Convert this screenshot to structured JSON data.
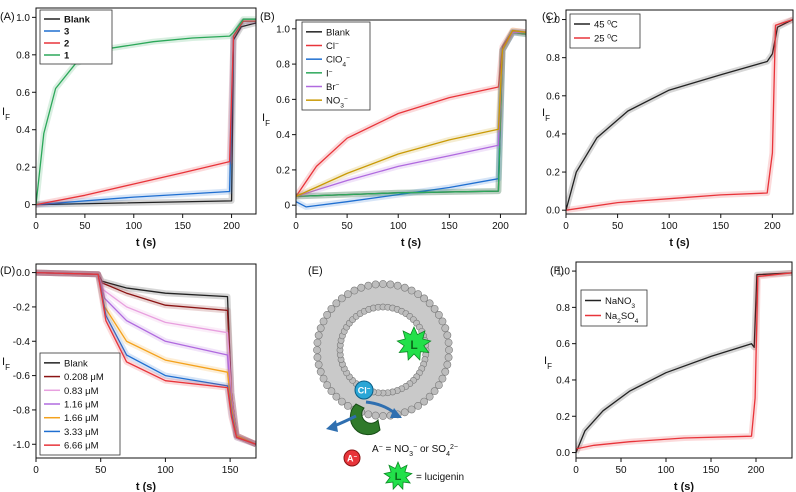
{
  "figure": {
    "colors": {
      "blank": "#222222",
      "red": "#e8343a",
      "blue": "#1f6fd1",
      "green": "#2ca85a",
      "violet": "#b06adf",
      "gold": "#c99a06",
      "pink": "#e8a0df",
      "orange": "#f4a21d",
      "darkred": "#8b1414",
      "black": "#222222"
    }
  },
  "chart_data": [
    {
      "id": "A",
      "type": "line",
      "panel_label": "(A)",
      "xlabel": "t (s)",
      "ylabel": "I",
      "ylabel_sub": "F",
      "xlim": [
        0,
        225
      ],
      "ylim": [
        -0.05,
        1.05
      ],
      "xticks": [
        0,
        50,
        100,
        150,
        200
      ],
      "yticks": [
        0,
        0.2,
        0.4,
        0.6,
        0.8,
        1.0
      ],
      "ytick_labels": [
        "0",
        "0.2",
        "0.4",
        "0.6",
        "0.8",
        "1.0"
      ],
      "legend": {
        "position": "top-left",
        "bold_labels": true
      },
      "series": [
        {
          "name": "Blank",
          "color": "#222222",
          "points": [
            [
              0,
              0
            ],
            [
              200,
              0.02
            ],
            [
              202,
              0.88
            ],
            [
              210,
              0.95
            ],
            [
              225,
              0.97
            ]
          ]
        },
        {
          "name": "3",
          "color": "#1f6fd1",
          "points": [
            [
              0,
              0
            ],
            [
              100,
              0.04
            ],
            [
              198,
              0.07
            ],
            [
              202,
              0.9
            ],
            [
              212,
              0.98
            ],
            [
              225,
              0.98
            ]
          ]
        },
        {
          "name": "2",
          "color": "#e8343a",
          "points": [
            [
              0,
              0
            ],
            [
              50,
              0.05
            ],
            [
              100,
              0.11
            ],
            [
              150,
              0.17
            ],
            [
              198,
              0.23
            ],
            [
              202,
              0.9
            ],
            [
              212,
              0.98
            ],
            [
              225,
              0.98
            ]
          ]
        },
        {
          "name": "1",
          "color": "#2ca85a",
          "points": [
            [
              0,
              0
            ],
            [
              8,
              0.38
            ],
            [
              20,
              0.62
            ],
            [
              40,
              0.75
            ],
            [
              70,
              0.83
            ],
            [
              120,
              0.87
            ],
            [
              160,
              0.89
            ],
            [
              198,
              0.9
            ],
            [
              202,
              0.92
            ],
            [
              212,
              0.99
            ],
            [
              225,
              0.99
            ]
          ]
        }
      ]
    },
    {
      "id": "B",
      "type": "line",
      "panel_label": "(B)",
      "xlabel": "t (s)",
      "ylabel": "I",
      "ylabel_sub": "F",
      "xlim": [
        0,
        225
      ],
      "ylim": [
        -0.05,
        1.05
      ],
      "xticks": [
        0,
        50,
        100,
        150,
        200
      ],
      "yticks": [
        0,
        0.2,
        0.4,
        0.6,
        0.8,
        1.0
      ],
      "ytick_labels": [
        "0",
        "0.2",
        "0.4",
        "0.6",
        "0.8",
        "1.0"
      ],
      "legend": {
        "position": "top-left",
        "bold_labels": false
      },
      "series": [
        {
          "name": "Blank",
          "color": "#222222",
          "points": [
            [
              0,
              0.05
            ],
            [
              100,
              0.07
            ],
            [
              198,
              0.08
            ],
            [
              202,
              0.88
            ],
            [
              212,
              0.98
            ],
            [
              225,
              0.97
            ]
          ]
        },
        {
          "name": "Cl",
          "sup": "−",
          "color": "#e8343a",
          "points": [
            [
              0,
              0.05
            ],
            [
              20,
              0.22
            ],
            [
              50,
              0.38
            ],
            [
              100,
              0.52
            ],
            [
              150,
              0.61
            ],
            [
              198,
              0.67
            ],
            [
              202,
              0.9
            ],
            [
              212,
              0.99
            ],
            [
              225,
              0.98
            ]
          ]
        },
        {
          "name": "ClO",
          "sub": "4",
          "sup": "−",
          "color": "#1f6fd1",
          "points": [
            [
              0,
              0.02
            ],
            [
              10,
              -0.01
            ],
            [
              50,
              0.02
            ],
            [
              100,
              0.06
            ],
            [
              150,
              0.1
            ],
            [
              198,
              0.15
            ],
            [
              202,
              0.88
            ],
            [
              212,
              0.98
            ],
            [
              225,
              0.98
            ]
          ]
        },
        {
          "name": "I",
          "sup": "−",
          "color": "#2ca85a",
          "points": [
            [
              0,
              0.05
            ],
            [
              100,
              0.07
            ],
            [
              198,
              0.08
            ],
            [
              202,
              0.88
            ],
            [
              212,
              0.98
            ],
            [
              225,
              0.97
            ]
          ]
        },
        {
          "name": "Br",
          "sup": "−",
          "color": "#b06adf",
          "points": [
            [
              0,
              0.05
            ],
            [
              50,
              0.14
            ],
            [
              100,
              0.22
            ],
            [
              150,
              0.28
            ],
            [
              198,
              0.34
            ],
            [
              202,
              0.88
            ],
            [
              212,
              0.98
            ],
            [
              225,
              0.98
            ]
          ]
        },
        {
          "name": "NO",
          "sub": "3",
          "sup": "−",
          "color": "#c99a06",
          "points": [
            [
              0,
              0.05
            ],
            [
              50,
              0.18
            ],
            [
              100,
              0.29
            ],
            [
              150,
              0.37
            ],
            [
              198,
              0.43
            ],
            [
              202,
              0.88
            ],
            [
              212,
              0.99
            ],
            [
              225,
              0.98
            ]
          ]
        }
      ]
    },
    {
      "id": "C",
      "type": "line",
      "panel_label": "(C)",
      "xlabel": "t (s)",
      "ylabel": "I",
      "ylabel_sub": "F",
      "xlim": [
        0,
        220
      ],
      "ylim": [
        -0.02,
        1.05
      ],
      "xticks": [
        0,
        50,
        100,
        150,
        200
      ],
      "yticks": [
        0,
        0.2,
        0.4,
        0.6,
        0.8,
        1.0
      ],
      "ytick_labels": [
        "0.0",
        "0.2",
        "0.4",
        "0.6",
        "0.8",
        "1.0"
      ],
      "legend": {
        "position": "top-left",
        "bold_labels": false
      },
      "series": [
        {
          "name": "45 ",
          "sup": "0",
          "tail": "C",
          "color": "#222222",
          "points": [
            [
              0,
              0
            ],
            [
              10,
              0.2
            ],
            [
              30,
              0.38
            ],
            [
              60,
              0.52
            ],
            [
              100,
              0.63
            ],
            [
              150,
              0.71
            ],
            [
              195,
              0.78
            ],
            [
              200,
              0.82
            ],
            [
              205,
              0.96
            ],
            [
              220,
              1.0
            ]
          ]
        },
        {
          "name": "25 ",
          "sup": "0",
          "tail": "C",
          "color": "#e8343a",
          "points": [
            [
              0,
              0
            ],
            [
              50,
              0.04
            ],
            [
              100,
              0.06
            ],
            [
              150,
              0.08
            ],
            [
              195,
              0.09
            ],
            [
              200,
              0.3
            ],
            [
              203,
              0.97
            ],
            [
              220,
              1.0
            ]
          ]
        }
      ]
    },
    {
      "id": "D",
      "type": "line",
      "panel_label": "(D)",
      "xlabel": "t (s)",
      "ylabel": "I",
      "ylabel_sub": "F",
      "xlim": [
        0,
        170
      ],
      "ylim": [
        -1.08,
        0.05
      ],
      "xticks": [
        0,
        50,
        100,
        150
      ],
      "yticks": [
        0,
        -0.2,
        -0.4,
        -0.6,
        -0.8,
        -1.0
      ],
      "ytick_labels": [
        "0.0",
        "-0.2",
        "-0.4",
        "-0.6",
        "-0.8",
        "-1.0"
      ],
      "legend": {
        "position": "bottom-left",
        "bold_labels": false
      },
      "series": [
        {
          "name": "Blank",
          "color": "#222222",
          "points": [
            [
              0,
              0
            ],
            [
              48,
              -0.01
            ],
            [
              51,
              -0.05
            ],
            [
              70,
              -0.09
            ],
            [
              100,
              -0.12
            ],
            [
              148,
              -0.14
            ],
            [
              151,
              -0.7
            ],
            [
              155,
              -0.95
            ],
            [
              170,
              -1.0
            ]
          ]
        },
        {
          "name": "0.208 μM",
          "color": "#8b1414",
          "points": [
            [
              0,
              0
            ],
            [
              48,
              -0.01
            ],
            [
              51,
              -0.06
            ],
            [
              70,
              -0.12
            ],
            [
              100,
              -0.19
            ],
            [
              148,
              -0.22
            ],
            [
              151,
              -0.7
            ],
            [
              155,
              -0.95
            ],
            [
              170,
              -1.0
            ]
          ]
        },
        {
          "name": "0.83 μM",
          "color": "#e8a0df",
          "points": [
            [
              0,
              0
            ],
            [
              48,
              -0.01
            ],
            [
              52,
              -0.1
            ],
            [
              70,
              -0.2
            ],
            [
              100,
              -0.29
            ],
            [
              148,
              -0.35
            ],
            [
              151,
              -0.72
            ],
            [
              155,
              -0.95
            ],
            [
              170,
              -1.0
            ]
          ]
        },
        {
          "name": "1.16 μM",
          "color": "#b06adf",
          "points": [
            [
              0,
              0
            ],
            [
              48,
              -0.01
            ],
            [
              53,
              -0.15
            ],
            [
              70,
              -0.28
            ],
            [
              100,
              -0.4
            ],
            [
              148,
              -0.48
            ],
            [
              151,
              -0.75
            ],
            [
              155,
              -0.95
            ],
            [
              170,
              -1.0
            ]
          ]
        },
        {
          "name": "1.66 μM",
          "color": "#f4a21d",
          "points": [
            [
              0,
              0
            ],
            [
              48,
              -0.01
            ],
            [
              53,
              -0.2
            ],
            [
              70,
              -0.4
            ],
            [
              100,
              -0.51
            ],
            [
              148,
              -0.58
            ],
            [
              151,
              -0.78
            ],
            [
              155,
              -0.95
            ],
            [
              170,
              -1.0
            ]
          ]
        },
        {
          "name": "3.33 μM",
          "color": "#1f6fd1",
          "points": [
            [
              0,
              0
            ],
            [
              48,
              -0.01
            ],
            [
              54,
              -0.25
            ],
            [
              70,
              -0.48
            ],
            [
              100,
              -0.6
            ],
            [
              148,
              -0.66
            ],
            [
              151,
              -0.82
            ],
            [
              155,
              -0.96
            ],
            [
              170,
              -1.0
            ]
          ]
        },
        {
          "name": "6.66 μM",
          "color": "#e8343a",
          "points": [
            [
              0,
              0
            ],
            [
              48,
              -0.01
            ],
            [
              54,
              -0.28
            ],
            [
              70,
              -0.52
            ],
            [
              100,
              -0.63
            ],
            [
              148,
              -0.67
            ],
            [
              151,
              -0.84
            ],
            [
              155,
              -0.96
            ],
            [
              170,
              -1.0
            ]
          ]
        }
      ]
    },
    {
      "id": "F",
      "type": "line",
      "panel_label": "(F)",
      "xlabel": "t (s)",
      "ylabel": "I",
      "ylabel_sub": "F",
      "xlim": [
        0,
        240
      ],
      "ylim": [
        -0.03,
        1.05
      ],
      "xticks": [
        0,
        50,
        100,
        150,
        200
      ],
      "yticks": [
        0,
        0.2,
        0.4,
        0.6,
        0.8,
        1.0
      ],
      "ytick_labels": [
        "0.0",
        "0.2",
        "0.4",
        "0.6",
        "0.8",
        "1.0"
      ],
      "legend": {
        "position": "top-left",
        "bold_labels": false
      },
      "series": [
        {
          "name": "NaNO",
          "sub": "3",
          "color": "#222222",
          "points": [
            [
              0,
              0
            ],
            [
              10,
              0.12
            ],
            [
              30,
              0.23
            ],
            [
              60,
              0.34
            ],
            [
              100,
              0.44
            ],
            [
              150,
              0.53
            ],
            [
              195,
              0.6
            ],
            [
              198,
              0.58
            ],
            [
              201,
              0.98
            ],
            [
              240,
              0.99
            ]
          ]
        },
        {
          "name": "Na",
          "sub": "2",
          "mid": "SO",
          "sub2": "4",
          "color": "#e8343a",
          "points": [
            [
              0,
              0.02
            ],
            [
              20,
              0.04
            ],
            [
              60,
              0.06
            ],
            [
              120,
              0.08
            ],
            [
              195,
              0.09
            ],
            [
              199,
              0.3
            ],
            [
              202,
              0.97
            ],
            [
              240,
              0.99
            ]
          ]
        }
      ]
    }
  ],
  "schematic": {
    "panel_label": "(E)",
    "ion_label": "Cl",
    "ion_sup": "−",
    "anion_label": "A",
    "anion_sup": "−",
    "lucigenin_symbol": "L",
    "anion_def_prefix": "A",
    "anion_def_sup": "−",
    "anion_def_mid": " = NO",
    "anion_def_sub": "3",
    "anion_def_sup2": "−",
    "anion_def_or": " or SO",
    "anion_def_sub2": "4",
    "anion_def_sup3": "2−",
    "lucigenin_def": "= lucigenin"
  }
}
